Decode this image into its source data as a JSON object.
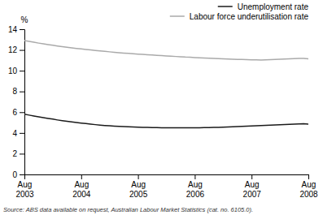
{
  "chart_data": {
    "type": "line",
    "ylabel": "%",
    "categories": [
      "Aug 2003",
      null,
      null,
      null,
      null,
      null,
      null,
      null,
      null,
      null,
      null,
      null,
      "Aug 2004",
      null,
      null,
      null,
      null,
      null,
      null,
      null,
      null,
      null,
      null,
      null,
      "Aug 2005",
      null,
      null,
      null,
      null,
      null,
      null,
      null,
      null,
      null,
      null,
      null,
      "Aug 2006",
      null,
      null,
      null,
      null,
      null,
      null,
      null,
      null,
      null,
      null,
      null,
      "Aug 2007",
      null,
      null,
      null,
      null,
      null,
      null,
      null,
      null,
      null,
      null,
      null,
      "Aug 2008"
    ],
    "series": [
      {
        "name": "Unemployment rate",
        "color": "#1a1a1a",
        "values": [
          5.8,
          5.72,
          5.63,
          5.55,
          5.48,
          5.4,
          5.33,
          5.25,
          5.18,
          5.12,
          5.06,
          5.0,
          4.95,
          4.9,
          4.85,
          4.8,
          4.76,
          4.72,
          4.69,
          4.66,
          4.63,
          4.61,
          4.59,
          4.57,
          4.55,
          4.54,
          4.53,
          4.52,
          4.51,
          4.5,
          4.5,
          4.5,
          4.5,
          4.5,
          4.5,
          4.5,
          4.5,
          4.5,
          4.51,
          4.52,
          4.53,
          4.54,
          4.55,
          4.57,
          4.59,
          4.61,
          4.63,
          4.65,
          4.67,
          4.69,
          4.71,
          4.73,
          4.75,
          4.77,
          4.79,
          4.81,
          4.83,
          4.85,
          4.87,
          4.89,
          4.85
        ]
      },
      {
        "name": "Labour force underutilisation rate",
        "color": "#aaaaaa",
        "values": [
          12.9,
          12.82,
          12.74,
          12.66,
          12.59,
          12.52,
          12.45,
          12.38,
          12.32,
          12.26,
          12.2,
          12.15,
          12.1,
          12.05,
          12.0,
          11.95,
          11.9,
          11.86,
          11.82,
          11.78,
          11.74,
          11.7,
          11.67,
          11.63,
          11.6,
          11.57,
          11.54,
          11.51,
          11.48,
          11.45,
          11.42,
          11.4,
          11.37,
          11.35,
          11.32,
          11.3,
          11.27,
          11.25,
          11.23,
          11.21,
          11.19,
          11.17,
          11.15,
          11.13,
          11.11,
          11.09,
          11.08,
          11.06,
          11.05,
          11.04,
          11.03,
          11.05,
          11.07,
          11.09,
          11.11,
          11.13,
          11.15,
          11.17,
          11.18,
          11.19,
          11.15
        ]
      }
    ],
    "ylim": [
      0,
      14
    ],
    "yticks": [
      0,
      2,
      4,
      6,
      8,
      10,
      12,
      14
    ],
    "grid": false,
    "legend": "upper right",
    "annotations": [
      "Source: ABS data available on request, Australian Labour Market Statistics (cat. no. 6105.0)."
    ]
  }
}
